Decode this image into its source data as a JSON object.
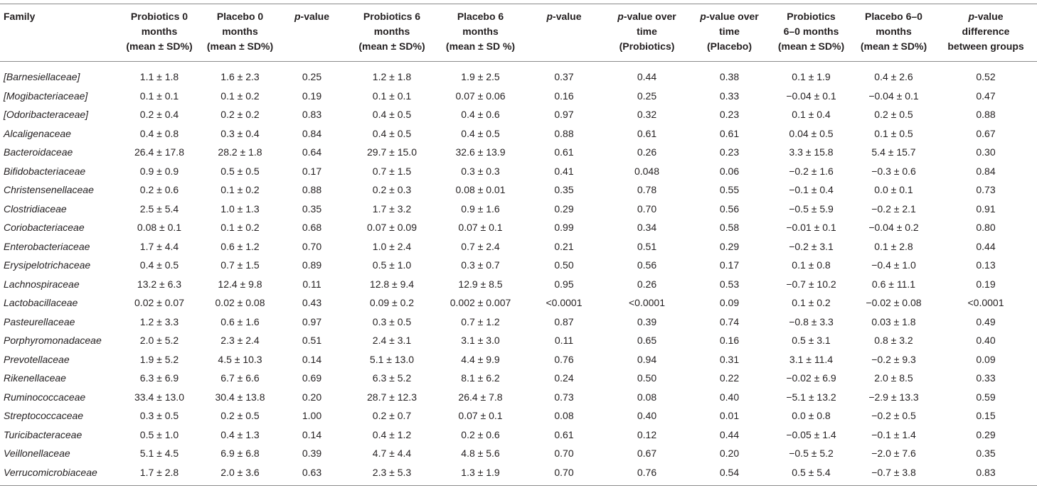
{
  "headers": [
    "Family",
    "Probiotics 0 months (mean ± SD%)",
    "Placebo 0 months (mean ± SD%)",
    "p-value",
    "Probiotics 6 months (mean ± SD%)",
    "Placebo 6 months (mean ± SD %)",
    "p-value",
    "p-value over time (Probiotics)",
    "p-value over time (Placebo)",
    "Probiotics 6–0 months (mean ± SD%)",
    "Placebo 6–0 months (mean ± SD%)",
    "p-value difference between groups"
  ],
  "header_lines": [
    [
      "Family"
    ],
    [
      "Probiotics 0",
      "months",
      "(mean ± SD%)"
    ],
    [
      "Placebo 0",
      "months",
      "(mean ± SD%)"
    ],
    [
      "p-value"
    ],
    [
      "Probiotics 6",
      "months",
      "(mean ± SD%)"
    ],
    [
      "Placebo 6",
      "months",
      "(mean ± SD %)"
    ],
    [
      "p-value"
    ],
    [
      "p-value over",
      "time",
      "(Probiotics)"
    ],
    [
      "p-value over",
      "time",
      "(Placebo)"
    ],
    [
      "Probiotics",
      "6–0 months",
      "(mean ± SD%)"
    ],
    [
      "Placebo 6–0",
      "months",
      "(mean ± SD%)"
    ],
    [
      "p-value",
      "difference",
      "between groups"
    ]
  ],
  "rows": [
    [
      "[Barnesiellaceae]",
      "1.1 ± 1.8",
      "1.6 ± 2.3",
      "0.25",
      "1.2 ± 1.8",
      "1.9 ± 2.5",
      "0.37",
      "0.44",
      "0.38",
      "0.1 ± 1.9",
      "0.4 ± 2.6",
      "0.52"
    ],
    [
      "[Mogibacteriaceae]",
      "0.1 ± 0.1",
      "0.1 ± 0.2",
      "0.19",
      "0.1 ± 0.1",
      "0.07 ± 0.06",
      "0.16",
      "0.25",
      "0.33",
      "−0.04 ± 0.1",
      "−0.04 ± 0.1",
      "0.47"
    ],
    [
      "[Odoribacteraceae]",
      "0.2 ± 0.4",
      "0.2 ± 0.2",
      "0.83",
      "0.4 ± 0.5",
      "0.4 ± 0.6",
      "0.97",
      "0.32",
      "0.23",
      "0.1 ± 0.4",
      "0.2 ± 0.5",
      "0.88"
    ],
    [
      "Alcaligenaceae",
      "0.4 ± 0.8",
      "0.3 ± 0.4",
      "0.84",
      "0.4 ± 0.5",
      "0.4 ± 0.5",
      "0.88",
      "0.61",
      "0.61",
      "0.04 ± 0.5",
      "0.1 ± 0.5",
      "0.67"
    ],
    [
      "Bacteroidaceae",
      "26.4 ± 17.8",
      "28.2 ± 1.8",
      "0.64",
      "29.7 ± 15.0",
      "32.6 ± 13.9",
      "0.61",
      "0.26",
      "0.23",
      "3.3 ± 15.8",
      "5.4 ± 15.7",
      "0.30"
    ],
    [
      "Bifidobacteriaceae",
      "0.9 ± 0.9",
      "0.5 ± 0.5",
      "0.17",
      "0.7 ± 1.5",
      "0.3 ± 0.3",
      "0.41",
      "0.048",
      "0.06",
      "−0.2 ± 1.6",
      "−0.3 ± 0.6",
      "0.84"
    ],
    [
      "Christensenellaceae",
      "0.2 ± 0.6",
      "0.1 ± 0.2",
      "0.88",
      "0.2 ± 0.3",
      "0.08 ± 0.01",
      "0.35",
      "0.78",
      "0.55",
      "−0.1 ± 0.4",
      "0.0 ± 0.1",
      "0.73"
    ],
    [
      "Clostridiaceae",
      "2.5 ± 5.4",
      "1.0 ± 1.3",
      "0.35",
      "1.7 ± 3.2",
      "0.9 ± 1.6",
      "0.29",
      "0.70",
      "0.56",
      "−0.5 ± 5.9",
      "−0.2 ± 2.1",
      "0.91"
    ],
    [
      "Coriobacteriaceae",
      "0.08 ± 0.1",
      "0.1 ± 0.2",
      "0.68",
      "0.07 ± 0.09",
      "0.07 ± 0.1",
      "0.99",
      "0.34",
      "0.58",
      "−0.01 ± 0.1",
      "−0.04 ± 0.2",
      "0.80"
    ],
    [
      "Enterobacteriaceae",
      "1.7 ± 4.4",
      "0.6 ± 1.2",
      "0.70",
      "1.0 ± 2.4",
      "0.7 ± 2.4",
      "0.21",
      "0.51",
      "0.29",
      "−0.2 ± 3.1",
      "0.1 ± 2.8",
      "0.44"
    ],
    [
      "Erysipelotrichaceae",
      "0.4 ± 0.5",
      "0.7 ± 1.5",
      "0.89",
      "0.5 ± 1.0",
      "0.3 ± 0.7",
      "0.50",
      "0.56",
      "0.17",
      "0.1 ± 0.8",
      "−0.4 ± 1.0",
      "0.13"
    ],
    [
      "Lachnospiraceae",
      "13.2 ± 6.3",
      "12.4 ± 9.8",
      "0.11",
      "12.8 ± 9.4",
      "12.9 ± 8.5",
      "0.95",
      "0.26",
      "0.53",
      "−0.7 ± 10.2",
      "0.6 ± 11.1",
      "0.19"
    ],
    [
      "Lactobacillaceae",
      "0.02 ± 0.07",
      "0.02 ± 0.08",
      "0.43",
      "0.09 ± 0.2",
      "0.002 ± 0.007",
      "<0.0001",
      "<0.0001",
      "0.09",
      "0.1 ± 0.2",
      "−0.02 ± 0.08",
      "<0.0001"
    ],
    [
      "Pasteurellaceae",
      "1.2 ± 3.3",
      "0.6 ± 1.6",
      "0.97",
      "0.3 ± 0.5",
      "0.7 ± 1.2",
      "0.87",
      "0.39",
      "0.74",
      "−0.8 ± 3.3",
      "0.03 ± 1.8",
      "0.49"
    ],
    [
      "Porphyromonadaceae",
      "2.0 ± 5.2",
      "2.3 ± 2.4",
      "0.51",
      "2.4 ± 3.1",
      "3.1 ± 3.0",
      "0.11",
      "0.65",
      "0.16",
      "0.5 ± 3.1",
      "0.8 ± 3.2",
      "0.40"
    ],
    [
      "Prevotellaceae",
      "1.9 ± 5.2",
      "4.5 ± 10.3",
      "0.14",
      "5.1 ± 13.0",
      "4.4 ± 9.9",
      "0.76",
      "0.94",
      "0.31",
      "3.1 ± 11.4",
      "−0.2 ± 9.3",
      "0.09"
    ],
    [
      "Rikenellaceae",
      "6.3 ± 6.9",
      "6.7 ± 6.6",
      "0.69",
      "6.3 ± 5.2",
      "8.1 ± 6.2",
      "0.24",
      "0.50",
      "0.22",
      "−0.02 ± 6.9",
      "2.0 ± 8.5",
      "0.33"
    ],
    [
      "Ruminococcaceae",
      "33.4 ± 13.0",
      "30.4 ± 13.8",
      "0.20",
      "28.7 ± 12.3",
      "26.4 ± 7.8",
      "0.73",
      "0.08",
      "0.40",
      "−5.1 ± 13.2",
      "−2.9 ± 13.3",
      "0.59"
    ],
    [
      "Streptococcaceae",
      "0.3 ± 0.5",
      "0.2 ± 0.5",
      "1.00",
      "0.2 ± 0.7",
      "0.07 ± 0.1",
      "0.08",
      "0.40",
      "0.01",
      "0.0 ± 0.8",
      "−0.2 ± 0.5",
      "0.15"
    ],
    [
      "Turicibacteraceae",
      "0.5 ± 1.0",
      "0.4 ± 1.3",
      "0.14",
      "0.4 ± 1.2",
      "0.2 ± 0.6",
      "0.61",
      "0.12",
      "0.44",
      "−0.05 ± 1.4",
      "−0.1 ± 1.4",
      "0.29"
    ],
    [
      "Veillonellaceae",
      "5.1 ± 4.5",
      "6.9 ± 6.8",
      "0.39",
      "4.7 ± 4.4",
      "4.8 ± 5.6",
      "0.70",
      "0.67",
      "0.20",
      "−0.5 ± 5.2",
      "−2.0 ± 7.6",
      "0.35"
    ],
    [
      "Verrucomicrobiaceae",
      "1.7 ± 2.8",
      "2.0 ± 3.6",
      "0.63",
      "2.3 ± 5.3",
      "1.3 ± 1.9",
      "0.70",
      "0.76",
      "0.54",
      "0.5 ± 5.4",
      "−0.7 ± 3.8",
      "0.83"
    ]
  ]
}
